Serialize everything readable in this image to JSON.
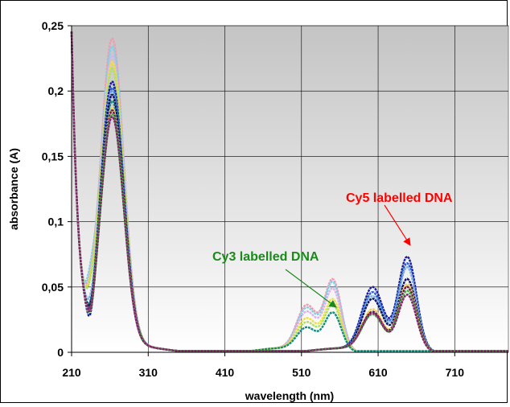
{
  "chart_data": {
    "type": "line",
    "xlabel": "wavelength (nm)",
    "ylabel": "absorbance (A)",
    "xlim": [
      210,
      780
    ],
    "ylim": [
      0,
      0.25
    ],
    "x_ticks": [
      "210",
      "310",
      "410",
      "510",
      "610",
      "710"
    ],
    "y_ticks": [
      "0",
      "0,05",
      "0,1",
      "0,15",
      "0,2",
      "0,25"
    ],
    "grid": true,
    "legend": "none",
    "annotations": [
      {
        "text": "Cy3 labelled DNA",
        "color": "#1a8a1a",
        "points_to": {
          "x": 550,
          "y": 0.052
        }
      },
      {
        "text": "Cy5 labelled DNA",
        "color": "#ff0000",
        "points_to": {
          "x": 645,
          "y": 0.075
        }
      }
    ],
    "series_groups": [
      {
        "group": "Cy3",
        "peak_x": 550,
        "curves": [
          {
            "color": "#f29ab0",
            "uv_peak": 0.238,
            "dip": 0.065,
            "shoulder": 0.035,
            "vis_peak": 0.055
          },
          {
            "color": "#7fd1e8",
            "uv_peak": 0.232,
            "dip": 0.07,
            "shoulder": 0.033,
            "vis_peak": 0.053
          },
          {
            "color": "#d9b3e6",
            "uv_peak": 0.225,
            "dip": 0.062,
            "shoulder": 0.03,
            "vis_peak": 0.048
          },
          {
            "color": "#f0e040",
            "uv_peak": 0.22,
            "dip": 0.06,
            "shoulder": 0.025,
            "vis_peak": 0.04
          },
          {
            "color": "#b0e060",
            "uv_peak": 0.215,
            "dip": 0.058,
            "shoulder": 0.022,
            "vis_peak": 0.036
          },
          {
            "color": "#158a80",
            "uv_peak": 0.19,
            "dip": 0.04,
            "shoulder": 0.018,
            "vis_peak": 0.03
          }
        ]
      },
      {
        "group": "Cy5",
        "peak_x": 645,
        "curves": [
          {
            "color": "#1a1aa0",
            "uv_peak": 0.205,
            "dip": 0.03,
            "shoulder": 0.049,
            "vis_peak": 0.073
          },
          {
            "color": "#2060d0",
            "uv_peak": 0.2,
            "dip": 0.036,
            "shoulder": 0.045,
            "vis_peak": 0.068
          },
          {
            "color": "#80b0e0",
            "uv_peak": 0.198,
            "dip": 0.045,
            "shoulder": 0.042,
            "vis_peak": 0.065
          },
          {
            "color": "#101060",
            "uv_peak": 0.195,
            "dip": 0.038,
            "shoulder": 0.04,
            "vis_peak": 0.056
          },
          {
            "color": "#f0d050",
            "uv_peak": 0.185,
            "dip": 0.034,
            "shoulder": 0.032,
            "vis_peak": 0.052
          },
          {
            "color": "#6a1a4a",
            "uv_peak": 0.183,
            "dip": 0.035,
            "shoulder": 0.03,
            "vis_peak": 0.05
          },
          {
            "color": "#40b040",
            "uv_peak": 0.18,
            "dip": 0.032,
            "shoulder": 0.028,
            "vis_peak": 0.047
          },
          {
            "color": "#8a2070",
            "uv_peak": 0.178,
            "dip": 0.033,
            "shoulder": 0.029,
            "vis_peak": 0.044
          }
        ]
      }
    ]
  }
}
